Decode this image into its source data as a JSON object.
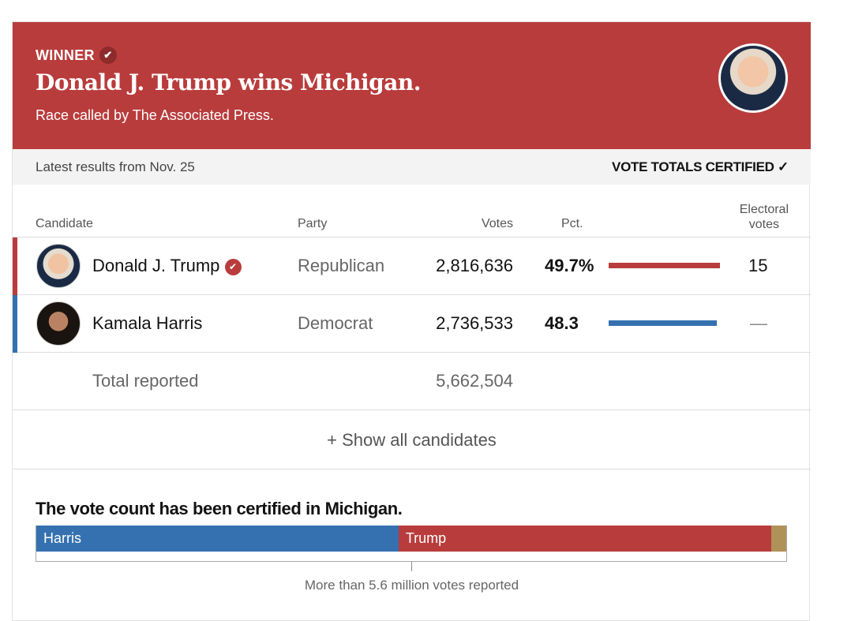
{
  "header": {
    "winner_label": "WINNER",
    "title": "Donald J. Trump wins Michigan.",
    "subtitle": "Race called by The Associated Press."
  },
  "status": {
    "latest": "Latest results from Nov. 25",
    "certified": "VOTE TOTALS CERTIFIED ✓"
  },
  "columns": {
    "candidate": "Candidate",
    "party": "Party",
    "votes": "Votes",
    "pct": "Pct.",
    "electoral1": "Electoral",
    "electoral2": "votes"
  },
  "rows": [
    {
      "name": "Donald J. Trump",
      "party": "Republican",
      "votes": "2,816,636",
      "pct": "49.7%",
      "pct_value": 49.7,
      "electoral": "15",
      "color": "#b93c3c",
      "winner": true
    },
    {
      "name": "Kamala Harris",
      "party": "Democrat",
      "votes": "2,736,533",
      "pct": "48.3",
      "pct_value": 48.3,
      "electoral": "—",
      "color": "#3571b0"
    }
  ],
  "total": {
    "label": "Total reported",
    "votes": "5,662,504"
  },
  "show_all": "+ Show all candidates",
  "summary": {
    "title": "The vote count has been certified in Michigan.",
    "harris_label": "Harris",
    "trump_label": "Trump",
    "harris_pct": 48.3,
    "trump_pct": 49.7,
    "other_pct": 2.0,
    "other_color": "#b09158",
    "footnote": "More than 5.6 million votes reported"
  }
}
